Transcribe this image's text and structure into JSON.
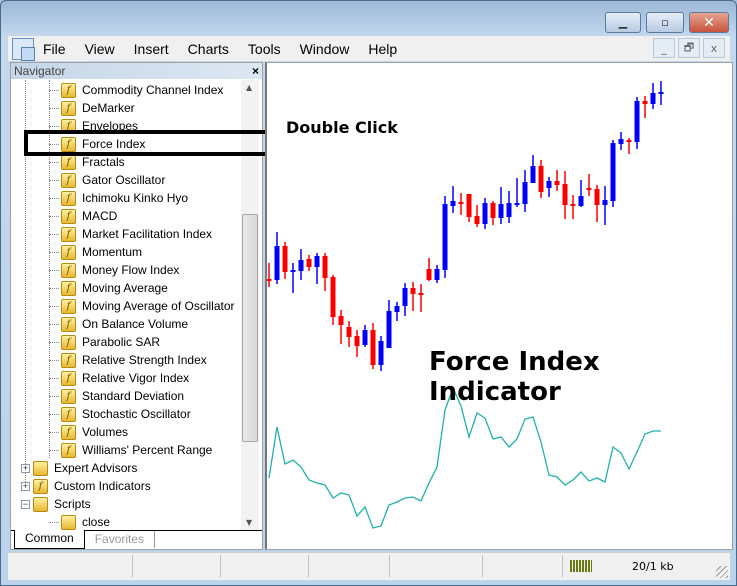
{
  "window": {
    "minimize": "▁",
    "maximize": "▫",
    "close": "✕"
  },
  "menu": [
    "File",
    "View",
    "Insert",
    "Charts",
    "Tools",
    "Window",
    "Help"
  ],
  "mdi": {
    "minimize": "_",
    "restore": "🗗",
    "close": "x"
  },
  "navigator": {
    "title": "Navigator",
    "close": "×",
    "indicators": [
      "Commodity Channel Index",
      "DeMarker",
      "Envelopes",
      "Force Index",
      "Fractals",
      "Gator Oscillator",
      "Ichimoku Kinko Hyo",
      "MACD",
      "Market Facilitation Index",
      "Momentum",
      "Money Flow Index",
      "Moving Average",
      "Moving Average of Oscillator",
      "On Balance Volume",
      "Parabolic SAR",
      "Relative Strength Index",
      "Relative Vigor Index",
      "Standard Deviation",
      "Stochastic Oscillator",
      "Volumes",
      "Williams' Percent Range"
    ],
    "groups": [
      {
        "label": "Expert Advisors",
        "expander": "+"
      },
      {
        "label": "Custom Indicators",
        "expander": "+"
      },
      {
        "label": "Scripts",
        "expander": "−"
      }
    ],
    "scripts": [
      "close"
    ],
    "tabs": [
      "Common",
      "Favorites"
    ],
    "selected": "Force Index"
  },
  "annotations": {
    "double_click": "Double Click",
    "indicator_title": "Force Index Indicator"
  },
  "chart": {
    "bull_color": "#0000ff",
    "bear_color": "#ff0000",
    "force_index_color": "#20b2aa"
  },
  "status": {
    "traffic": "20/1 kb"
  }
}
